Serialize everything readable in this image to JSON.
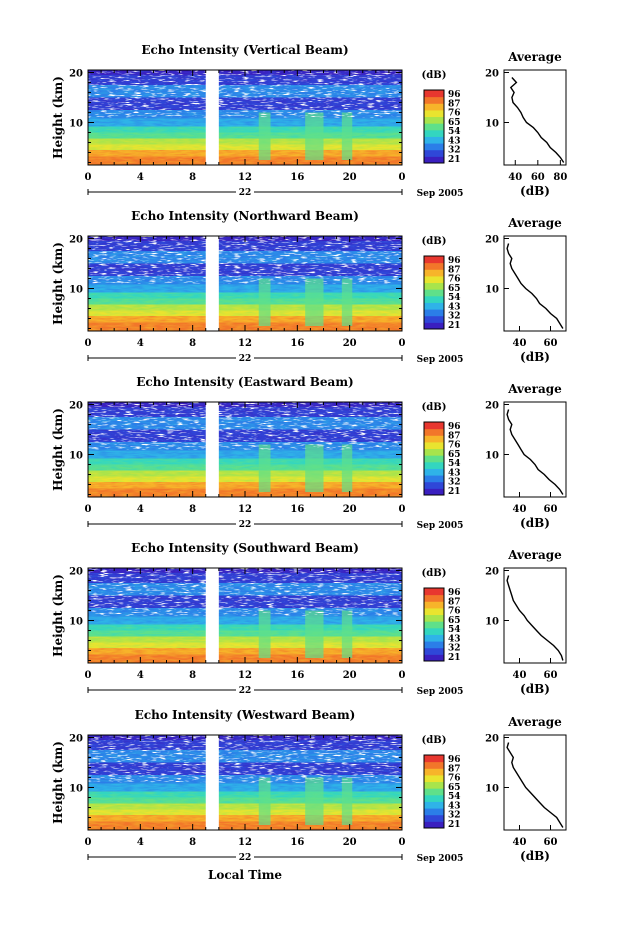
{
  "chart_data": {
    "type": "heatmap",
    "date_label": "Sep 2005",
    "day_label": "22",
    "xlabel": "Local Time",
    "ylabel": "Height (km)",
    "x_ticks": [
      "0",
      "4",
      "8",
      "12",
      "16",
      "20",
      "0"
    ],
    "xlim": [
      0,
      24
    ],
    "y_ticks": [
      "20",
      "10"
    ],
    "ylim": [
      1.5,
      20.5
    ],
    "data_gap_hours": [
      9,
      10
    ],
    "colorbar": {
      "unit": "(dB)",
      "levels": [
        "96",
        "87",
        "76",
        "65",
        "54",
        "43",
        "32",
        "21"
      ],
      "colors": [
        "#3a1fbf",
        "#2f47d8",
        "#2b7ee8",
        "#2fb3e8",
        "#33d6c0",
        "#5fe08a",
        "#a8e44c",
        "#e9e42f",
        "#f7b42a",
        "#f2762a",
        "#e8372f"
      ]
    },
    "panels": [
      {
        "title": "Echo Intensity (Vertical Beam)",
        "day": "22",
        "colorbar_levels": [
          "96",
          "87",
          "76",
          "65",
          "54",
          "43",
          "32",
          "21"
        ],
        "profile_title": "Average",
        "profile_xlabel": "(dB)",
        "profile_xticks": [
          "40",
          "60",
          "80"
        ],
        "profile_xlim": [
          30,
          85
        ],
        "profile_height_km": [
          2,
          3,
          4,
          5,
          6,
          7,
          8,
          9,
          10,
          11,
          12,
          13,
          14,
          15,
          16,
          17,
          18,
          19
        ],
        "profile_db": [
          83,
          80,
          76,
          71,
          68,
          63,
          60,
          56,
          50,
          47,
          45,
          42,
          38,
          37,
          39,
          36,
          41,
          37
        ]
      },
      {
        "title": "Echo Intensity (Northward Beam)",
        "day": "22",
        "colorbar_levels": [
          "96",
          "87",
          "76",
          "65",
          "54",
          "43",
          "32",
          "21"
        ],
        "profile_title": "Average",
        "profile_xlabel": "(dB)",
        "profile_xticks": [
          "40",
          "60"
        ],
        "profile_xlim": [
          30,
          70
        ],
        "profile_height_km": [
          2,
          3,
          4,
          5,
          6,
          7,
          8,
          9,
          10,
          11,
          12,
          13,
          14,
          15,
          16,
          17,
          18,
          19
        ],
        "profile_db": [
          68,
          66,
          64,
          60,
          57,
          53,
          51,
          48,
          44,
          41,
          39,
          37,
          35,
          34,
          35,
          33,
          32,
          33
        ]
      },
      {
        "title": "Echo Intensity (Eastward Beam)",
        "day": "22",
        "colorbar_levels": [
          "96",
          "87",
          "76",
          "65",
          "54",
          "43",
          "32",
          "21"
        ],
        "profile_title": "Average",
        "profile_xlabel": "(dB)",
        "profile_xticks": [
          "40",
          "60"
        ],
        "profile_xlim": [
          30,
          70
        ],
        "profile_height_km": [
          2,
          3,
          4,
          5,
          6,
          7,
          8,
          9,
          10,
          11,
          12,
          13,
          14,
          15,
          16,
          17,
          18,
          19
        ],
        "profile_db": [
          68,
          66,
          63,
          59,
          56,
          52,
          50,
          47,
          43,
          41,
          39,
          37,
          35,
          34,
          35,
          33,
          32,
          33
        ]
      },
      {
        "title": "Echo Intensity (Southward Beam)",
        "day": "22",
        "colorbar_levels": [
          "96",
          "87",
          "76",
          "65",
          "54",
          "43",
          "32",
          "21"
        ],
        "profile_title": "Average",
        "profile_xlabel": "(dB)",
        "profile_xticks": [
          "40",
          "60"
        ],
        "profile_xlim": [
          30,
          70
        ],
        "profile_height_km": [
          2,
          3,
          4,
          5,
          6,
          7,
          8,
          9,
          10,
          11,
          12,
          13,
          14,
          15,
          16,
          17,
          18,
          19
        ],
        "profile_db": [
          68,
          67,
          65,
          62,
          58,
          54,
          51,
          48,
          45,
          43,
          40,
          38,
          36,
          35,
          34,
          33,
          32,
          33
        ]
      },
      {
        "title": "Echo Intensity (Westward Beam)",
        "day": "22",
        "colorbar_levels": [
          "96",
          "87",
          "76",
          "65",
          "54",
          "43",
          "32",
          "21"
        ],
        "profile_title": "Average",
        "profile_xlabel": "(dB)",
        "profile_xticks": [
          "40",
          "60"
        ],
        "profile_xlim": [
          30,
          70
        ],
        "profile_height_km": [
          2,
          3,
          4,
          5,
          6,
          7,
          8,
          9,
          10,
          11,
          12,
          13,
          14,
          15,
          16,
          17,
          18,
          19
        ],
        "profile_db": [
          68,
          66,
          64,
          60,
          56,
          53,
          50,
          47,
          44,
          42,
          40,
          38,
          36,
          35,
          36,
          34,
          32,
          33
        ]
      }
    ]
  }
}
